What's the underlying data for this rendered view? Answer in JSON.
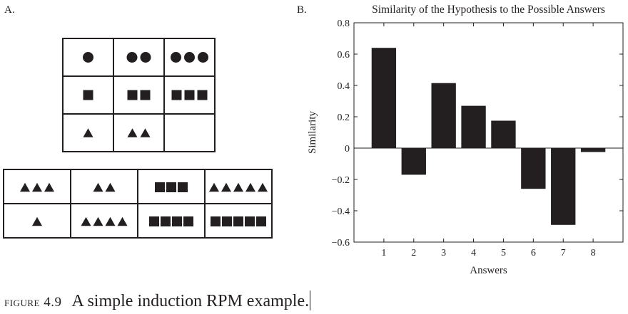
{
  "panel_a": {
    "label": "A.",
    "matrix": [
      [
        {
          "shape": "circle",
          "count": 1
        },
        {
          "shape": "circle",
          "count": 2
        },
        {
          "shape": "circle",
          "count": 3
        }
      ],
      [
        {
          "shape": "square",
          "count": 1
        },
        {
          "shape": "square",
          "count": 2
        },
        {
          "shape": "square",
          "count": 3
        }
      ],
      [
        {
          "shape": "triangle",
          "count": 1
        },
        {
          "shape": "triangle",
          "count": 2
        },
        {
          "shape": "blank",
          "count": 0
        }
      ]
    ],
    "answers": [
      [
        {
          "shape": "triangle",
          "count": 3
        },
        {
          "shape": "triangle",
          "count": 2
        },
        {
          "shape": "square",
          "count": 3
        },
        {
          "shape": "triangle",
          "count": 5
        }
      ],
      [
        {
          "shape": "triangle",
          "count": 1
        },
        {
          "shape": "triangle",
          "count": 4
        },
        {
          "shape": "square",
          "count": 4
        },
        {
          "shape": "square",
          "count": 5
        }
      ]
    ]
  },
  "panel_b": {
    "label": "B."
  },
  "chart_data": {
    "type": "bar",
    "title": "Similarity of the Hypothesis to the Possible Answers",
    "xlabel": "Answers",
    "ylabel": "Similarity",
    "categories": [
      "1",
      "2",
      "3",
      "4",
      "5",
      "6",
      "7",
      "8"
    ],
    "values": [
      0.64,
      -0.17,
      0.415,
      0.27,
      0.175,
      -0.26,
      -0.49,
      -0.025
    ],
    "ylim": [
      -0.6,
      0.8
    ],
    "yticks": [
      "−0.6",
      "−0.4",
      "−0.2",
      "0",
      "0.2",
      "0.4",
      "0.6",
      "0.8"
    ],
    "ytick_values": [
      -0.6,
      -0.4,
      -0.2,
      0,
      0.2,
      0.4,
      0.6,
      0.8
    ],
    "grid": false,
    "bar_color": "#231f20"
  },
  "caption": {
    "figure_number": "figure 4.9",
    "text": "A simple induction RPM example."
  }
}
